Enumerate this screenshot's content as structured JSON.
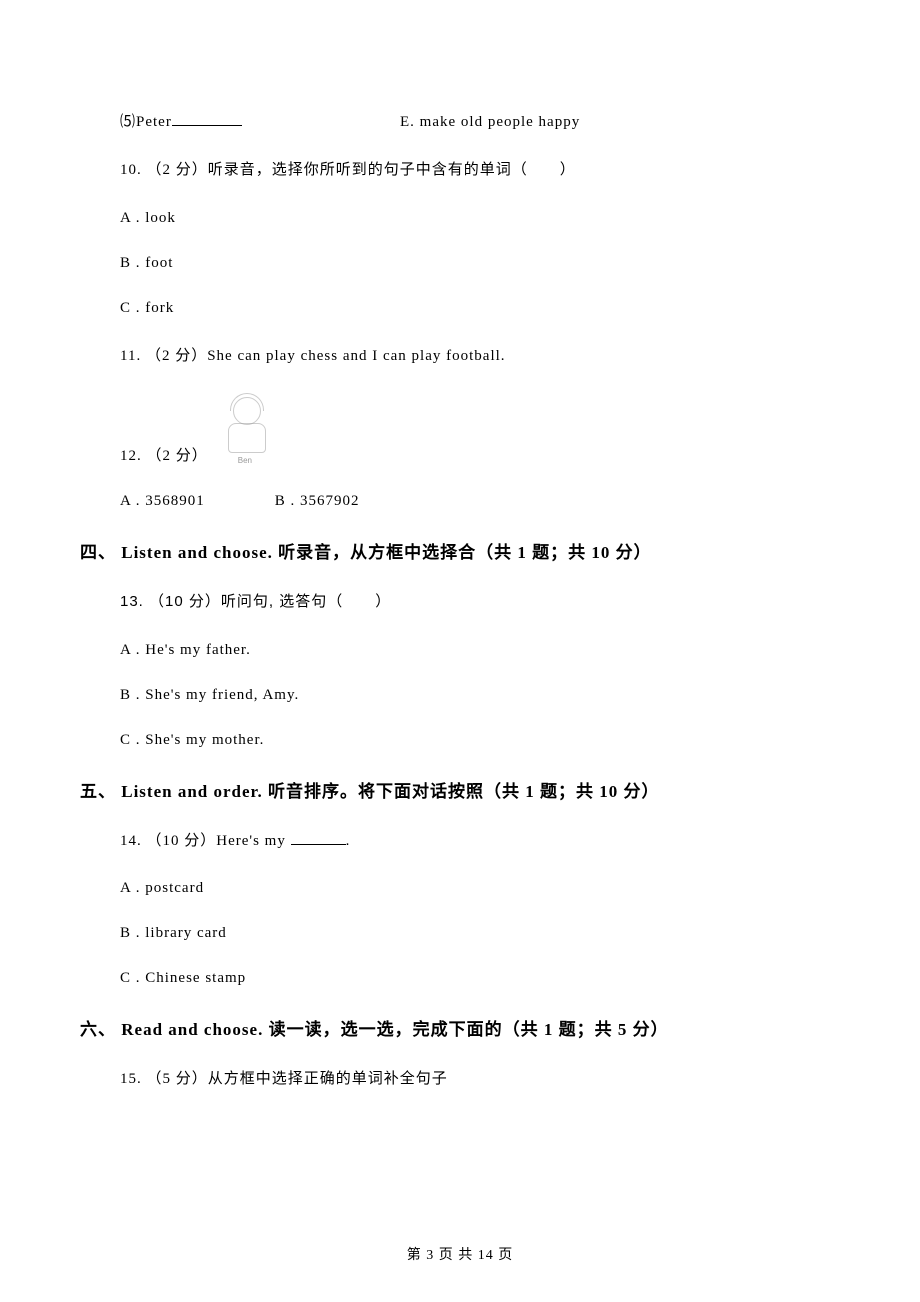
{
  "q9_item5": {
    "left_prefix": "⑸Peter",
    "right": "E. make old people happy"
  },
  "q10": {
    "stem": "10. （2 分）听录音，选择你所听到的句子中含有的单词（　　）",
    "options": {
      "a": "A . look",
      "b": "B . foot",
      "c": "C . fork"
    }
  },
  "q11": {
    "stem": "11. （2 分）She can play chess and I can play football."
  },
  "q12": {
    "stem": "12. （2 分）",
    "sketch_label": "Ben",
    "options": {
      "a": "A . 3568901",
      "b": "B . 3567902"
    }
  },
  "section4": {
    "heading": "四、 Listen and choose. 听录音，从方框中选择合（共 1 题；共 10 分）"
  },
  "q13": {
    "stem": "13. （10 分）听问句, 选答句（　　）",
    "options": {
      "a": "A . He's my father.",
      "b": "B . She's my friend, Amy.",
      "c": "C . She's my mother."
    }
  },
  "section5": {
    "heading": "五、 Listen and order. 听音排序。将下面对话按照（共 1 题；共 10 分）"
  },
  "q14": {
    "stem_prefix": "14. （10 分）Here's my ",
    "stem_suffix": ".",
    "options": {
      "a": "A . postcard",
      "b": "B . library card",
      "c": "C . Chinese stamp"
    }
  },
  "section6": {
    "heading": "六、 Read and choose. 读一读，选一选，完成下面的（共 1 题；共 5 分）"
  },
  "q15": {
    "stem": "15. （5 分）从方框中选择正确的单词补全句子"
  },
  "footer": {
    "text": "第 3 页 共 14 页"
  }
}
